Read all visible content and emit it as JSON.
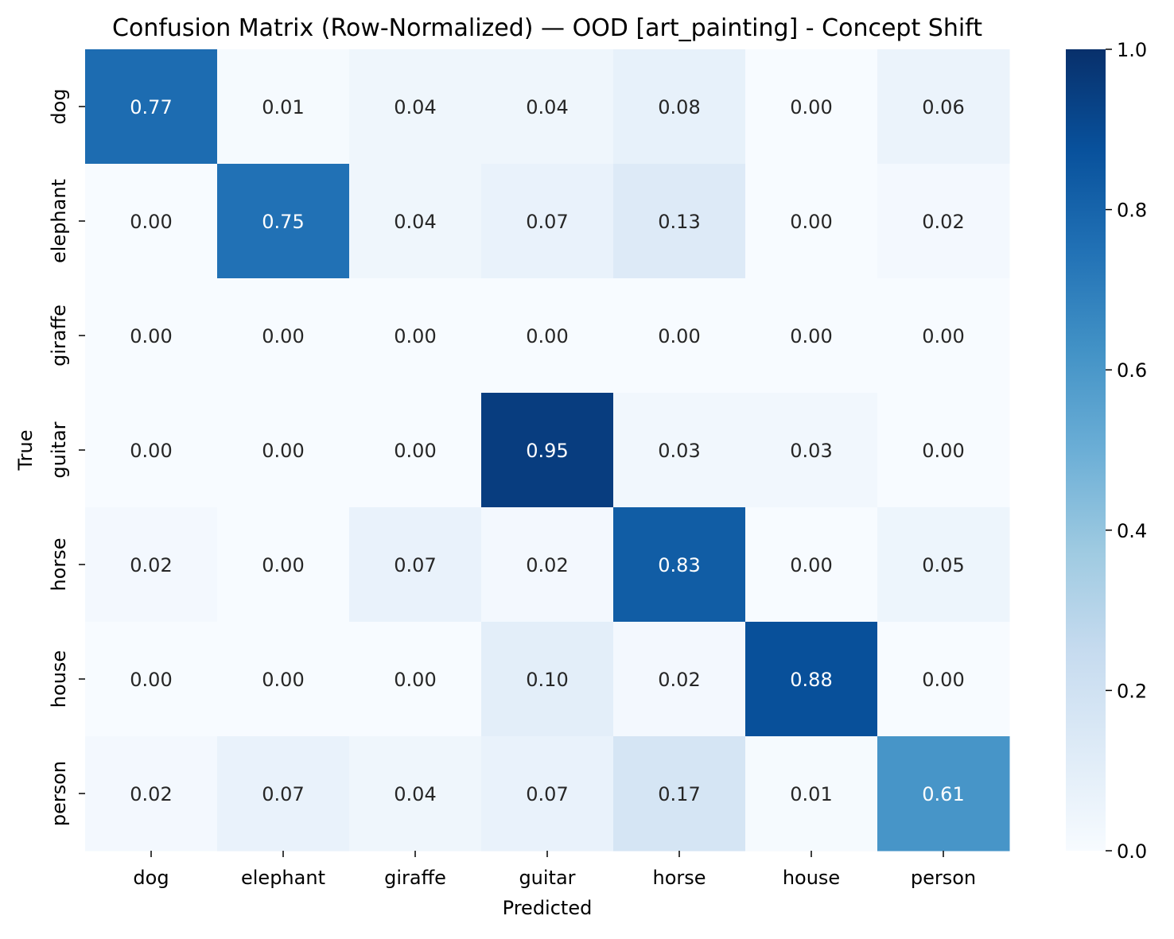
{
  "chart_data": {
    "type": "heatmap",
    "title": "Confusion Matrix (Row-Normalized) — OOD [art_painting] - Concept Shift",
    "xlabel": "Predicted",
    "ylabel": "True",
    "x_categories": [
      "dog",
      "elephant",
      "giraffe",
      "guitar",
      "horse",
      "house",
      "person"
    ],
    "y_categories": [
      "dog",
      "elephant",
      "giraffe",
      "guitar",
      "horse",
      "house",
      "person"
    ],
    "values": [
      [
        0.77,
        0.01,
        0.04,
        0.04,
        0.08,
        0.0,
        0.06
      ],
      [
        0.0,
        0.75,
        0.04,
        0.07,
        0.13,
        0.0,
        0.02
      ],
      [
        0.0,
        0.0,
        0.0,
        0.0,
        0.0,
        0.0,
        0.0
      ],
      [
        0.0,
        0.0,
        0.0,
        0.95,
        0.03,
        0.03,
        0.0
      ],
      [
        0.02,
        0.0,
        0.07,
        0.02,
        0.83,
        0.0,
        0.05
      ],
      [
        0.0,
        0.0,
        0.0,
        0.1,
        0.02,
        0.88,
        0.0
      ],
      [
        0.02,
        0.07,
        0.04,
        0.07,
        0.17,
        0.01,
        0.61
      ]
    ],
    "value_format": "0.00",
    "colormap": "Blues",
    "color_range": [
      0.0,
      1.0
    ],
    "colorbar_ticks": [
      0.0,
      0.2,
      0.4,
      0.6,
      0.8,
      1.0
    ],
    "colorbar_tick_labels": [
      "0.0",
      "0.2",
      "0.4",
      "0.6",
      "0.8",
      "1.0"
    ],
    "colors": {
      "low": "#f7fbff",
      "high": "#08306b",
      "text_dark": "#262626",
      "text_light": "#ffffff"
    }
  }
}
